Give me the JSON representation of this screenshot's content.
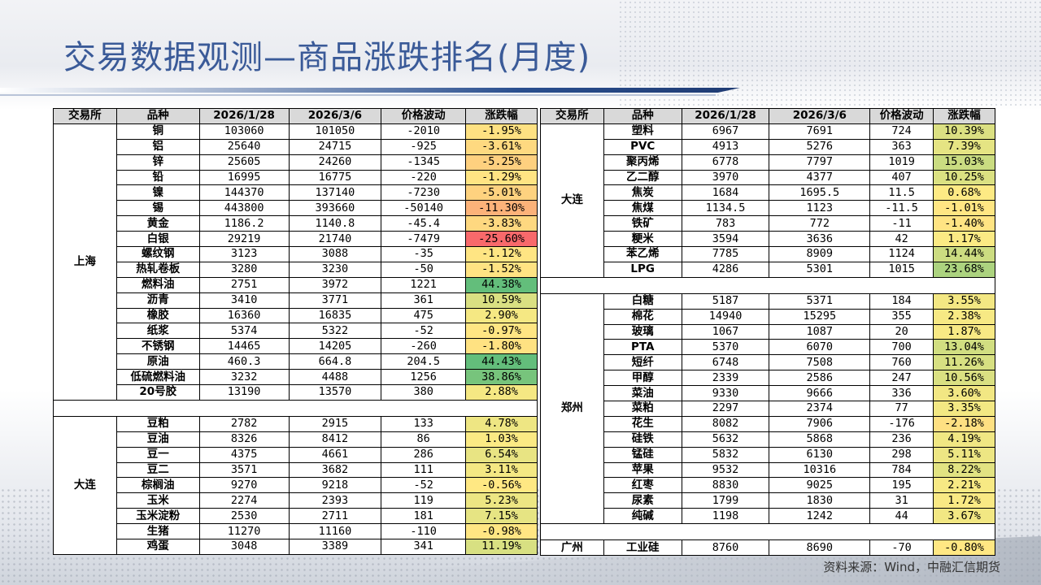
{
  "title": "交易数据观测—商品涨跌排名(月度)",
  "source_note": "资料来源：Wind，中融汇信期货",
  "headers": [
    "交易所",
    "品种",
    "2026/1/28",
    "2026/3/6",
    "价格波动",
    "涨跌幅"
  ],
  "scale_colors": {
    "negative": "#f8696b",
    "neutral": "#ffeb84",
    "positive": "#63be7b"
  },
  "left_groups": [
    {
      "exchange": "上海",
      "rows": [
        [
          "铜",
          "103060",
          "101050",
          "-2010",
          "-1.95%",
          -1.95
        ],
        [
          "铝",
          "25640",
          "24715",
          "-925",
          "-3.61%",
          -3.61
        ],
        [
          "锌",
          "25605",
          "24260",
          "-1345",
          "-5.25%",
          -5.25
        ],
        [
          "铅",
          "16995",
          "16775",
          "-220",
          "-1.29%",
          -1.29
        ],
        [
          "镍",
          "144370",
          "137140",
          "-7230",
          "-5.01%",
          -5.01
        ],
        [
          "锡",
          "443800",
          "393660",
          "-50140",
          "-11.30%",
          -11.3
        ],
        [
          "黄金",
          "1186.2",
          "1140.8",
          "-45.4",
          "-3.83%",
          -3.83
        ],
        [
          "白银",
          "29219",
          "21740",
          "-7479",
          "-25.60%",
          -25.6
        ],
        [
          "螺纹钢",
          "3123",
          "3088",
          "-35",
          "-1.12%",
          -1.12
        ],
        [
          "热轧卷板",
          "3280",
          "3230",
          "-50",
          "-1.52%",
          -1.52
        ],
        [
          "燃料油",
          "2751",
          "3972",
          "1221",
          "44.38%",
          44.38
        ],
        [
          "沥青",
          "3410",
          "3771",
          "361",
          "10.59%",
          10.59
        ],
        [
          "橡胶",
          "16360",
          "16835",
          "475",
          "2.90%",
          2.9
        ],
        [
          "纸浆",
          "5374",
          "5322",
          "-52",
          "-0.97%",
          -0.97
        ],
        [
          "不锈钢",
          "14465",
          "14205",
          "-260",
          "-1.80%",
          -1.8
        ],
        [
          "原油",
          "460.3",
          "664.8",
          "204.5",
          "44.43%",
          44.43
        ],
        [
          "低硫燃料油",
          "3232",
          "4488",
          "1256",
          "38.86%",
          38.86
        ],
        [
          "20号胶",
          "13190",
          "13570",
          "380",
          "2.88%",
          2.88
        ]
      ]
    },
    {
      "exchange": "大连",
      "rows": [
        [
          "豆粕",
          "2782",
          "2915",
          "133",
          "4.78%",
          4.78
        ],
        [
          "豆油",
          "8326",
          "8412",
          "86",
          "1.03%",
          1.03
        ],
        [
          "豆一",
          "4375",
          "4661",
          "286",
          "6.54%",
          6.54
        ],
        [
          "豆二",
          "3571",
          "3682",
          "111",
          "3.11%",
          3.11
        ],
        [
          "棕榈油",
          "9270",
          "9218",
          "-52",
          "-0.56%",
          -0.56
        ],
        [
          "玉米",
          "2274",
          "2393",
          "119",
          "5.23%",
          5.23
        ],
        [
          "玉米淀粉",
          "2530",
          "2711",
          "181",
          "7.15%",
          7.15
        ],
        [
          "生猪",
          "11270",
          "11160",
          "-110",
          "-0.98%",
          -0.98
        ],
        [
          "鸡蛋",
          "3048",
          "3389",
          "341",
          "11.19%",
          11.19
        ]
      ]
    }
  ],
  "right_groups": [
    {
      "exchange": "大连",
      "rows": [
        [
          "塑料",
          "6967",
          "7691",
          "724",
          "10.39%",
          10.39
        ],
        [
          "PVC",
          "4913",
          "5276",
          "363",
          "7.39%",
          7.39
        ],
        [
          "聚丙烯",
          "6778",
          "7797",
          "1019",
          "15.03%",
          15.03
        ],
        [
          "乙二醇",
          "3970",
          "4377",
          "407",
          "10.25%",
          10.25
        ],
        [
          "焦炭",
          "1684",
          "1695.5",
          "11.5",
          "0.68%",
          0.68
        ],
        [
          "焦煤",
          "1134.5",
          "1123",
          "-11.5",
          "-1.01%",
          -1.01
        ],
        [
          "铁矿",
          "783",
          "772",
          "-11",
          "-1.40%",
          -1.4
        ],
        [
          "粳米",
          "3594",
          "3636",
          "42",
          "1.17%",
          1.17
        ],
        [
          "苯乙烯",
          "7785",
          "8909",
          "1124",
          "14.44%",
          14.44
        ],
        [
          "LPG",
          "4286",
          "5301",
          "1015",
          "23.68%",
          23.68
        ]
      ]
    },
    {
      "exchange": "郑州",
      "rows": [
        [
          "白糖",
          "5187",
          "5371",
          "184",
          "3.55%",
          3.55
        ],
        [
          "棉花",
          "14940",
          "15295",
          "355",
          "2.38%",
          2.38
        ],
        [
          "玻璃",
          "1067",
          "1087",
          "20",
          "1.87%",
          1.87
        ],
        [
          "PTA",
          "5370",
          "6070",
          "700",
          "13.04%",
          13.04
        ],
        [
          "短纤",
          "6748",
          "7508",
          "760",
          "11.26%",
          11.26
        ],
        [
          "甲醇",
          "2339",
          "2586",
          "247",
          "10.56%",
          10.56
        ],
        [
          "菜油",
          "9330",
          "9666",
          "336",
          "3.60%",
          3.6
        ],
        [
          "菜粕",
          "2297",
          "2374",
          "77",
          "3.35%",
          3.35
        ],
        [
          "花生",
          "8082",
          "7906",
          "-176",
          "-2.18%",
          -2.18
        ],
        [
          "硅铁",
          "5632",
          "5868",
          "236",
          "4.19%",
          4.19
        ],
        [
          "锰硅",
          "5832",
          "6130",
          "298",
          "5.11%",
          5.11
        ],
        [
          "苹果",
          "9532",
          "10316",
          "784",
          "8.22%",
          8.22
        ],
        [
          "红枣",
          "8830",
          "9025",
          "195",
          "2.21%",
          2.21
        ],
        [
          "尿素",
          "1799",
          "1830",
          "31",
          "1.72%",
          1.72
        ],
        [
          "纯碱",
          "1198",
          "1242",
          "44",
          "3.67%",
          3.67
        ]
      ]
    },
    {
      "exchange": "广州",
      "rows": [
        [
          "工业硅",
          "8760",
          "8690",
          "-70",
          "-0.80%",
          -0.8
        ]
      ]
    }
  ]
}
